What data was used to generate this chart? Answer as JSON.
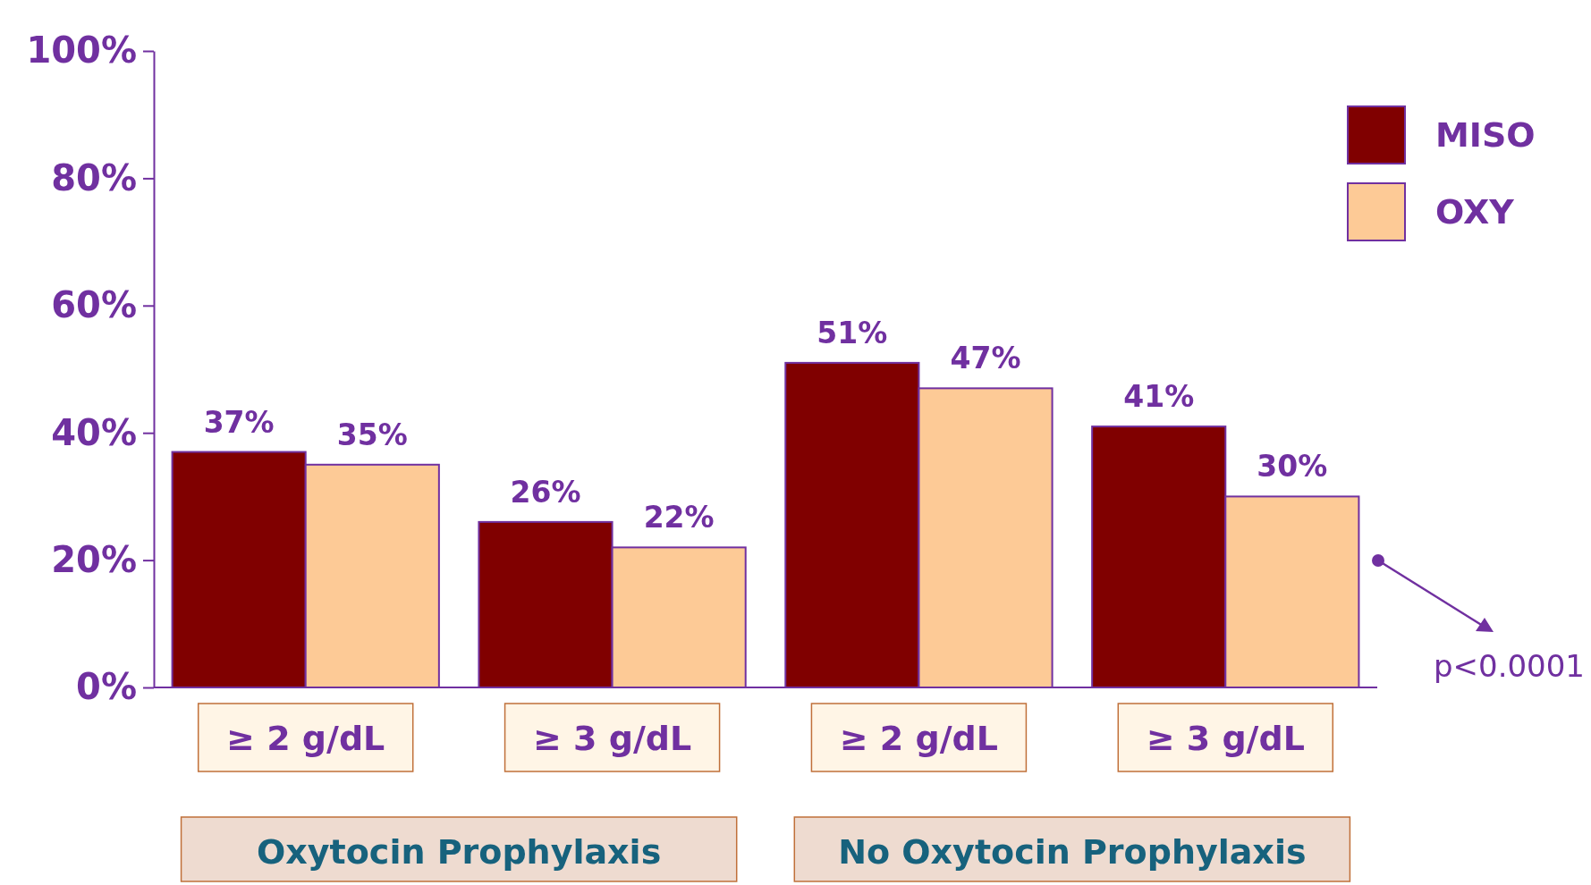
{
  "chart_data": {
    "type": "bar",
    "categories": [
      "≥ 2 g/dL",
      "≥ 3 g/dL",
      "≥ 2 g/dL",
      "≥ 3 g/dL"
    ],
    "series": [
      {
        "name": "MISO",
        "color": "#800000",
        "values": [
          37,
          26,
          51,
          41
        ],
        "value_labels": [
          "37%",
          "26%",
          "51%",
          "41%"
        ]
      },
      {
        "name": "OXY",
        "color": "#fdca96",
        "values": [
          35,
          22,
          47,
          30
        ],
        "value_labels": [
          "35%",
          "22%",
          "47%",
          "30%"
        ]
      }
    ],
    "ylim": [
      0,
      100
    ],
    "yticks": [
      {
        "value": 0,
        "label": "0%"
      },
      {
        "value": 20,
        "label": "20%"
      },
      {
        "value": 40,
        "label": "40%"
      },
      {
        "value": 60,
        "label": "60%"
      },
      {
        "value": 80,
        "label": "80%"
      },
      {
        "value": 100,
        "label": "100%"
      }
    ],
    "grid": false,
    "legend": "top right",
    "annotations": [
      "Oxytocin Prophylaxis",
      "No Oxytocin Prophylaxis",
      "p<0.0001"
    ]
  }
}
